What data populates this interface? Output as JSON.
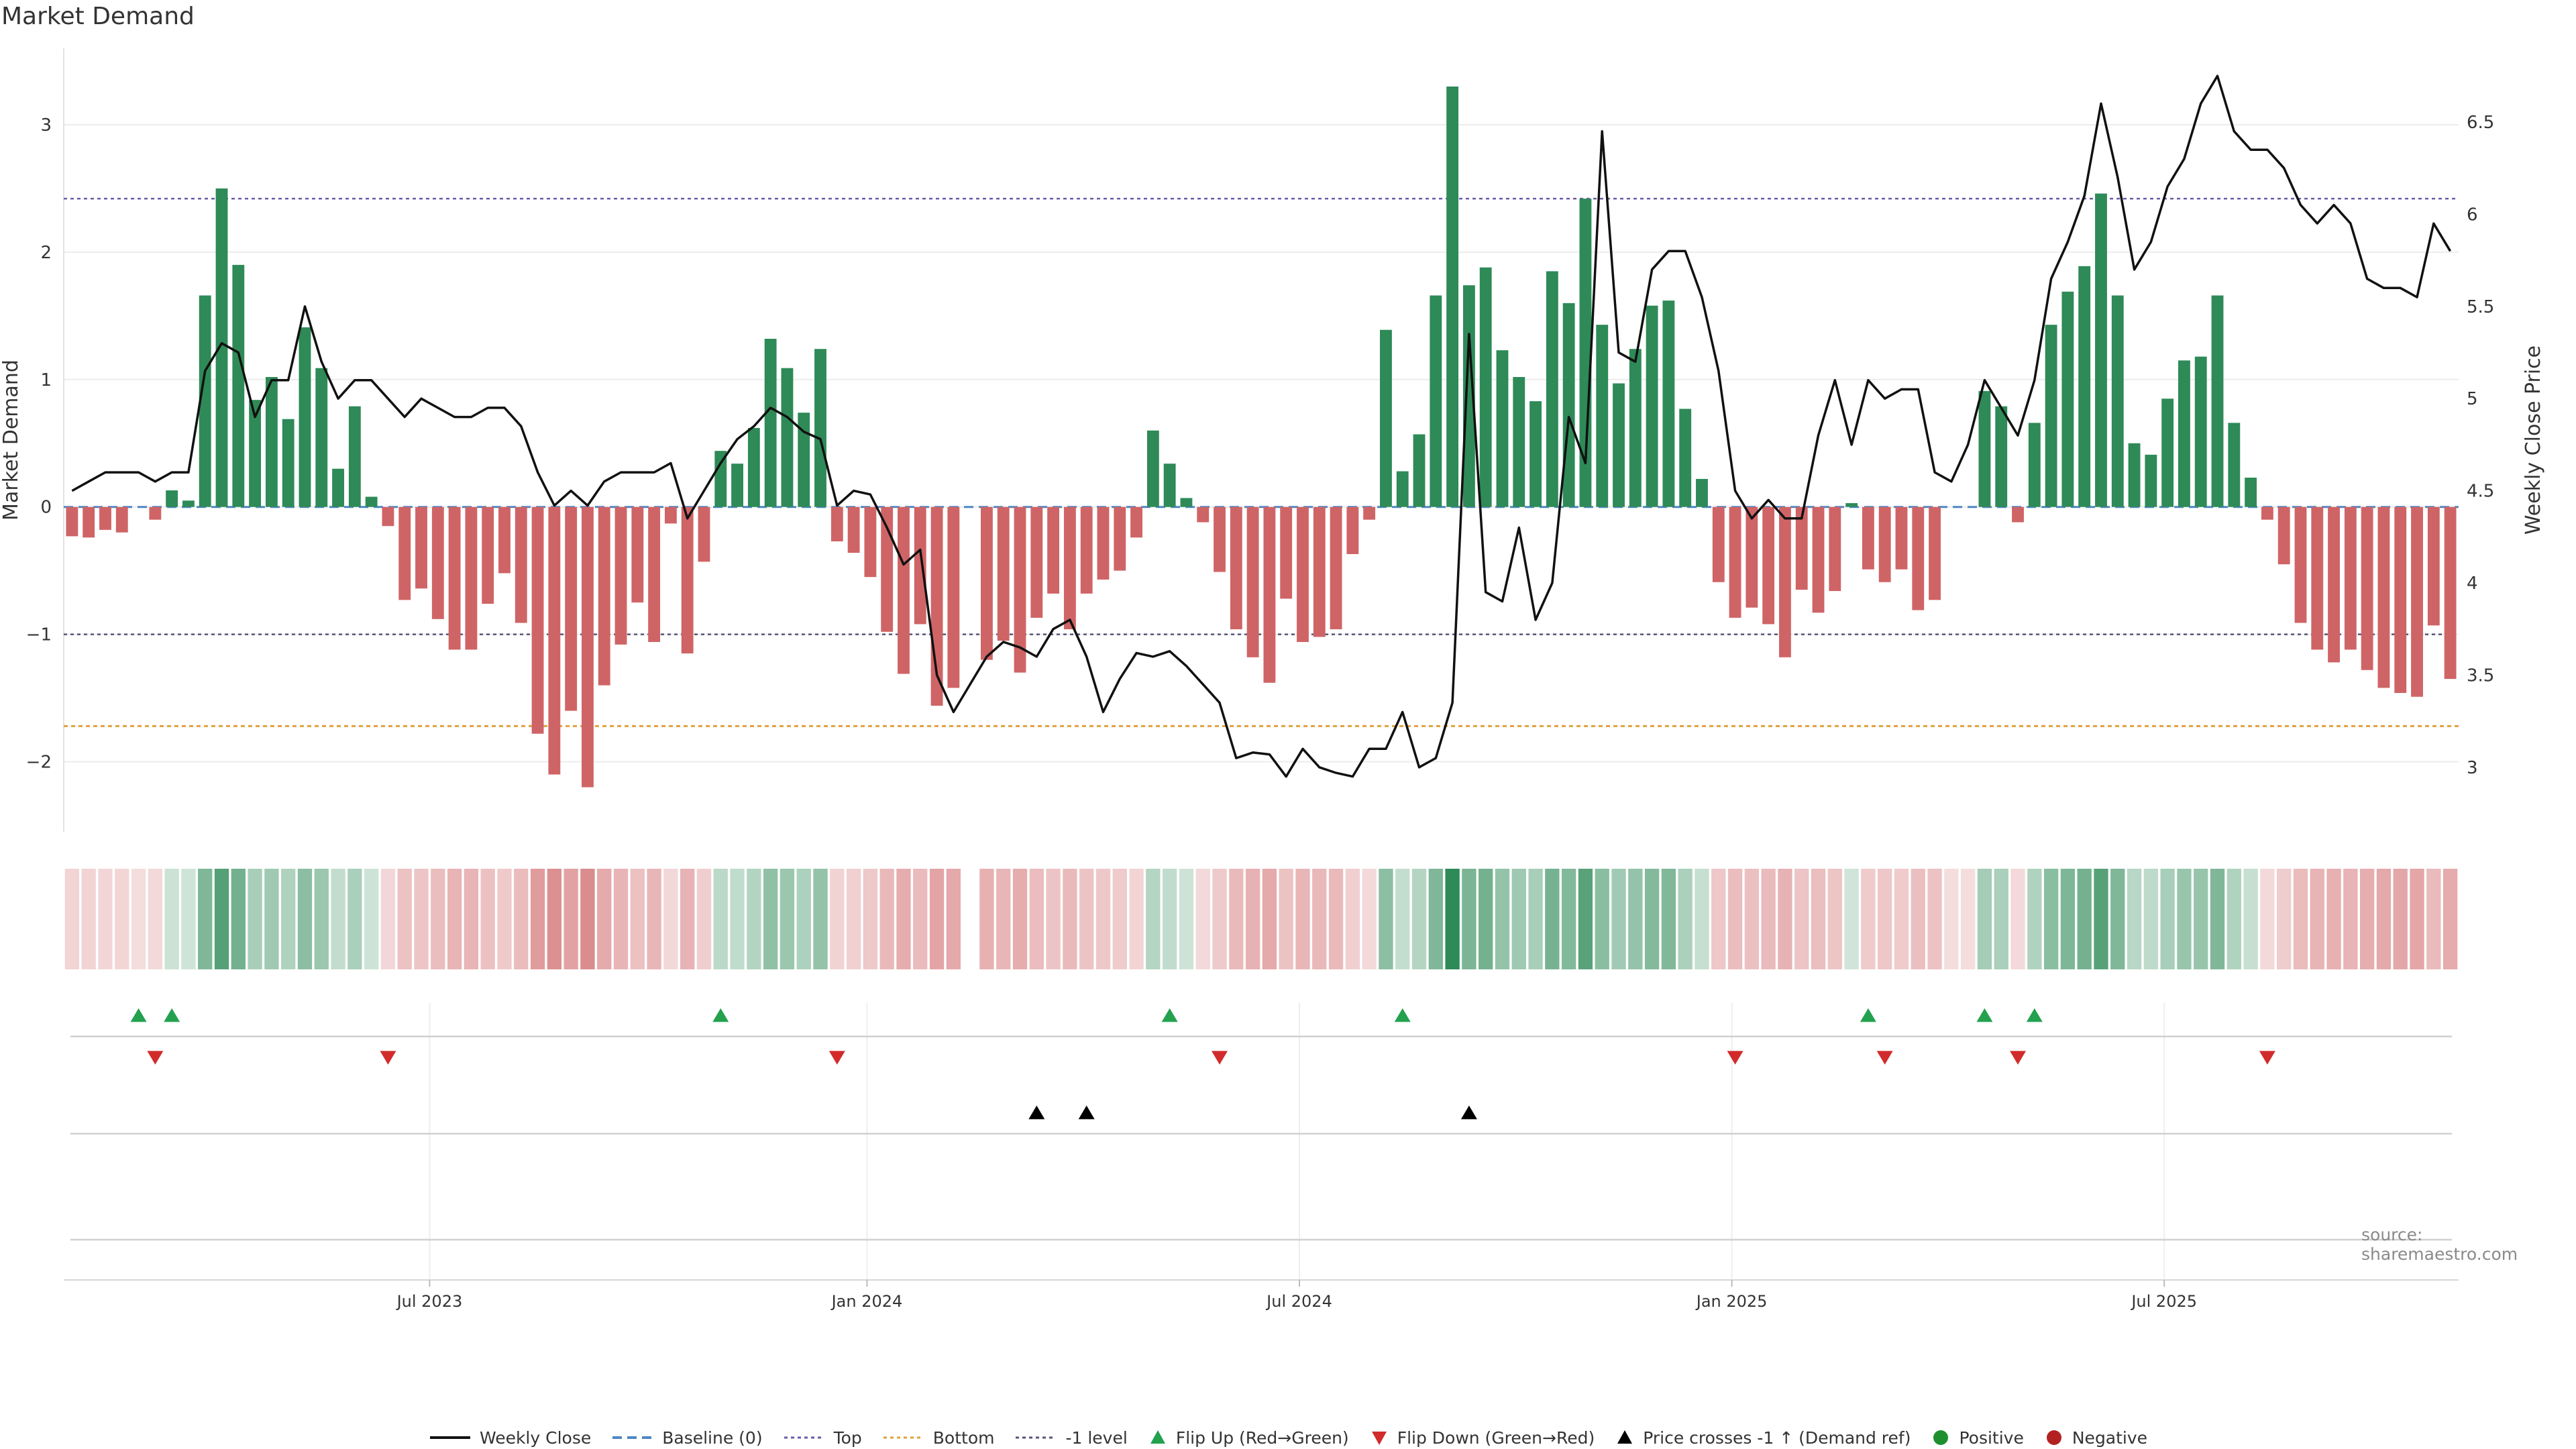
{
  "title": "Market Demand",
  "source_note": "source: sharemaestro.com",
  "colors": {
    "pos_bar": "#2e8a57",
    "neg_bar": "#cf6466",
    "price": "#111111",
    "baseline": "#4f87c4",
    "top_line": "#6c5aa8",
    "bottom_line": "#e0a23c",
    "minus1_line": "#555577",
    "flip_up": "#23a14e",
    "flip_down": "#d22b2b",
    "cross": "#000000",
    "positive": "#1f8f2e",
    "negative": "#b22222"
  },
  "legend": [
    {
      "label": "Weekly Close",
      "kind": "line-solid",
      "color": "#111111"
    },
    {
      "label": "Baseline (0)",
      "kind": "line-dash",
      "color": "#4f87c4"
    },
    {
      "label": "Top",
      "kind": "line-dot",
      "color": "#6c5aa8"
    },
    {
      "label": "Bottom",
      "kind": "line-dot",
      "color": "#e0a23c"
    },
    {
      "label": "-1 level",
      "kind": "line-dot",
      "color": "#555577"
    },
    {
      "label": "Flip Up (Red→Green)",
      "kind": "tri-up",
      "color": "#23a14e"
    },
    {
      "label": "Flip Down (Green→Red)",
      "kind": "tri-down",
      "color": "#d22b2b"
    },
    {
      "label": "Price crosses -1 ↑ (Demand ref)",
      "kind": "tri-up",
      "color": "#000000"
    },
    {
      "label": "Positive",
      "kind": "dot",
      "color": "#1f8f2e"
    },
    {
      "label": "Negative",
      "kind": "dot",
      "color": "#b22222"
    }
  ],
  "chart_data": {
    "type": "bar",
    "title": "Market Demand",
    "ylabel": "Market Demand",
    "y2label": "Weekly Close Price",
    "ylim": [
      -2.55,
      3.6
    ],
    "y2lim": [
      2.65,
      6.9
    ],
    "yticks": [
      -2,
      -1,
      0,
      1,
      2,
      3
    ],
    "ytick_labels": [
      "−2",
      "−1",
      "0",
      "1",
      "2",
      "3"
    ],
    "y2ticks": [
      3,
      3.5,
      4,
      4.5,
      5,
      5.5,
      6,
      6.5
    ],
    "y2tick_labels": [
      "3",
      "3.5",
      "4",
      "4.5",
      "5",
      "5.5",
      "6",
      "6.5"
    ],
    "x_tick_labels": [
      "Jul 2023",
      "Jan 2024",
      "Jul 2024",
      "Jan 2025",
      "Jul 2025"
    ],
    "x_tick_index": [
      22,
      48.3,
      74.3,
      100.3,
      126.3
    ],
    "gap_index": 54,
    "reference_lines": {
      "baseline": 0,
      "top": 2.42,
      "bottom": -1.72,
      "minus1": -1.0
    },
    "demand": [
      -0.23,
      -0.24,
      -0.18,
      -0.2,
      0,
      -0.1,
      0.13,
      0.05,
      1.66,
      2.5,
      1.9,
      0.84,
      1.02,
      0.69,
      1.41,
      1.09,
      0.3,
      0.79,
      0.08,
      -0.15,
      -0.73,
      -0.64,
      -0.88,
      -1.12,
      -1.12,
      -0.76,
      -0.52,
      -0.91,
      -1.78,
      -2.1,
      -1.6,
      -2.2,
      -1.4,
      -1.08,
      -0.75,
      -1.06,
      -0.13,
      -1.15,
      -0.43,
      0.44,
      0.34,
      0.62,
      1.32,
      1.09,
      0.74,
      1.24,
      -0.27,
      -0.36,
      -0.55,
      -0.98,
      -1.31,
      -0.92,
      -1.56,
      -1.42,
      0,
      -1.2,
      -1.05,
      -1.3,
      -0.87,
      -0.68,
      -0.96,
      -0.68,
      -0.57,
      -0.5,
      -0.24,
      0.6,
      0.34,
      0.07,
      -0.12,
      -0.51,
      -0.96,
      -1.18,
      -1.38,
      -0.72,
      -1.06,
      -1.02,
      -0.96,
      -0.37,
      -0.1,
      1.39,
      0.28,
      0.57,
      1.66,
      3.3,
      1.74,
      1.88,
      1.23,
      1.02,
      0.83,
      1.85,
      1.6,
      2.42,
      1.43,
      0.97,
      1.24,
      1.58,
      1.62,
      0.77,
      0.22,
      -0.59,
      -0.87,
      -0.79,
      -0.92,
      -1.18,
      -0.65,
      -0.83,
      -0.66,
      0.03,
      -0.49,
      -0.59,
      -0.49,
      -0.81,
      -0.73,
      0,
      0,
      0.91,
      0.79,
      -0.12,
      0.66,
      1.43,
      1.69,
      1.89,
      2.46,
      1.66,
      0.5,
      0.41,
      0.85,
      1.15,
      1.18,
      1.66,
      0.66,
      0.23,
      -0.1,
      -0.45,
      -0.91,
      -1.12,
      -1.22,
      -1.12,
      -1.28,
      -1.42,
      -1.46,
      -1.49,
      -0.93,
      -1.35
    ],
    "weekly_close": [
      4.5,
      4.55,
      4.6,
      4.6,
      4.6,
      4.55,
      4.6,
      4.6,
      5.15,
      5.3,
      5.25,
      4.9,
      5.1,
      5.1,
      5.5,
      5.2,
      5,
      5.1,
      5.1,
      5,
      4.9,
      5,
      4.95,
      4.9,
      4.9,
      4.95,
      4.95,
      4.85,
      4.6,
      4.42,
      4.5,
      4.42,
      4.55,
      4.6,
      4.6,
      4.6,
      4.65,
      4.35,
      4.5,
      4.65,
      4.78,
      4.85,
      4.95,
      4.9,
      4.82,
      4.78,
      4.42,
      4.5,
      4.48,
      4.3,
      4.1,
      4.18,
      3.5,
      3.3,
      3.45,
      3.6,
      3.68,
      3.65,
      3.6,
      3.75,
      3.8,
      3.6,
      3.3,
      3.48,
      3.62,
      3.6,
      3.63,
      3.55,
      3.45,
      3.35,
      3.05,
      3.08,
      3.07,
      2.95,
      3.1,
      3,
      2.97,
      2.95,
      3.1,
      3.1,
      3.3,
      3.0,
      3.05,
      3.35,
      5.35,
      3.95,
      3.9,
      4.3,
      3.8,
      4.0,
      4.9,
      4.65,
      6.45,
      5.25,
      5.2,
      5.7,
      5.8,
      5.8,
      5.55,
      5.15,
      4.5,
      4.35,
      4.45,
      4.35,
      4.35,
      4.8,
      5.1,
      4.75,
      5.1,
      5.0,
      5.05,
      5.05,
      4.6,
      4.55,
      4.75,
      5.1,
      4.95,
      4.8,
      5.1,
      5.65,
      5.85,
      6.1,
      6.6,
      6.2,
      5.7,
      5.85,
      6.15,
      6.3,
      6.6,
      6.75,
      6.45,
      6.35,
      6.35,
      6.25,
      6.05,
      5.95,
      6.05,
      5.95,
      5.65,
      5.6,
      5.6,
      5.55,
      5.95,
      5.8
    ],
    "heat_strip": {
      "description": "per-week heat cells mirroring demand intensity (green positive, red negative)"
    },
    "flip_up_index": [
      4,
      6,
      39,
      66,
      80,
      108,
      115,
      118
    ],
    "flip_down_index": [
      5,
      19,
      46,
      69,
      100,
      109,
      117,
      132
    ],
    "price_cross_index": [
      58,
      61,
      84
    ]
  }
}
